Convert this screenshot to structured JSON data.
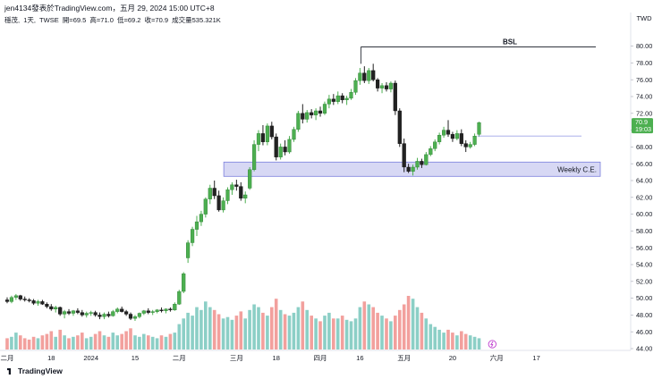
{
  "header": {
    "text": "jen4134發表於TradingView.com，五月 29, 2024 15:00 UTC+8"
  },
  "legend": {
    "symbol": "穩茂,",
    "interval": "1天,",
    "exchange": "TWSE",
    "open": "開=69.5",
    "high": "高=71.0",
    "low": "低=69.2",
    "close": "收=70.9",
    "volume": "成交量535.321K"
  },
  "currency": "TWD",
  "price_tag": {
    "price": "70.9",
    "countdown": "19:03"
  },
  "brand": {
    "label": "TradingView"
  },
  "annotations": {
    "bsl": "BSL",
    "weekly": "Weekly C.E.",
    "bsl_price": 79.9,
    "weekly_zone": [
      64.5,
      66.2
    ],
    "hline_price": 69.3
  },
  "colors": {
    "up": "#4caf50",
    "down": "#222222",
    "vol_up": "#8ccfc6",
    "vol_down": "#f2a09d",
    "zone_fill": "#c9cbf0",
    "zone_stroke": "#7b7fdc",
    "hline": "#9fa5e8"
  },
  "chart_data": {
    "type": "candlestick",
    "ylim": [
      44,
      81
    ],
    "y_ticks": [
      "44.00",
      "46.00",
      "48.00",
      "50.00",
      "52.00",
      "54.00",
      "56.00",
      "58.00",
      "60.00",
      "62.00",
      "64.00",
      "66.00",
      "68.00",
      "70.00",
      "72.00",
      "74.00",
      "76.00",
      "78.00",
      "80.00"
    ],
    "x_ticks": [
      {
        "label": "二月",
        "i": 0
      },
      {
        "label": "18",
        "i": 10
      },
      {
        "label": "2024",
        "i": 19
      },
      {
        "label": "15",
        "i": 29
      },
      {
        "label": "二月",
        "i": 39
      },
      {
        "label": "三月",
        "i": 52
      },
      {
        "label": "18",
        "i": 61
      },
      {
        "label": "四月",
        "i": 71
      },
      {
        "label": "16",
        "i": 80
      },
      {
        "label": "五月",
        "i": 90
      },
      {
        "label": "20",
        "i": 101
      },
      {
        "label": "六月",
        "i": 111
      },
      {
        "label": "17",
        "i": 120
      }
    ],
    "candles": [
      [
        49.8,
        50.1,
        49.4,
        49.6
      ],
      [
        49.6,
        50.3,
        49.4,
        50.1
      ],
      [
        50.1,
        50.5,
        49.8,
        50.3
      ],
      [
        50.3,
        50.4,
        49.7,
        49.9
      ],
      [
        49.9,
        50.2,
        49.6,
        49.8
      ],
      [
        49.8,
        50.0,
        49.5,
        49.7
      ],
      [
        49.7,
        49.9,
        49.2,
        49.4
      ],
      [
        49.4,
        49.8,
        49.1,
        49.6
      ],
      [
        49.6,
        49.8,
        49.2,
        49.3
      ],
      [
        49.3,
        49.5,
        48.8,
        49.0
      ],
      [
        49.0,
        49.3,
        48.5,
        48.7
      ],
      [
        48.7,
        49.1,
        48.3,
        48.9
      ],
      [
        48.9,
        49.0,
        47.9,
        48.1
      ],
      [
        48.1,
        48.6,
        47.6,
        48.4
      ],
      [
        48.4,
        48.7,
        48.0,
        48.2
      ],
      [
        48.2,
        48.6,
        47.9,
        48.5
      ],
      [
        48.5,
        48.8,
        48.1,
        48.3
      ],
      [
        48.3,
        48.6,
        47.8,
        48.0
      ],
      [
        48.0,
        48.4,
        47.7,
        48.2
      ],
      [
        48.2,
        48.5,
        47.9,
        48.3
      ],
      [
        48.3,
        48.5,
        47.8,
        48.0
      ],
      [
        48.0,
        48.3,
        47.5,
        47.8
      ],
      [
        47.8,
        48.3,
        47.5,
        48.1
      ],
      [
        48.1,
        48.4,
        47.7,
        47.9
      ],
      [
        47.9,
        48.6,
        47.8,
        48.4
      ],
      [
        48.4,
        48.9,
        48.2,
        48.7
      ],
      [
        48.7,
        49.0,
        48.3,
        48.4
      ],
      [
        48.4,
        48.6,
        47.9,
        48.1
      ],
      [
        48.1,
        48.3,
        47.4,
        47.6
      ],
      [
        47.6,
        48.0,
        47.3,
        47.8
      ],
      [
        47.8,
        48.3,
        47.6,
        48.2
      ],
      [
        48.2,
        48.6,
        48.0,
        48.5
      ],
      [
        48.5,
        48.8,
        48.1,
        48.3
      ],
      [
        48.3,
        48.6,
        48.0,
        48.4
      ],
      [
        48.4,
        48.7,
        48.2,
        48.6
      ],
      [
        48.6,
        48.9,
        48.3,
        48.5
      ],
      [
        48.5,
        48.8,
        48.2,
        48.7
      ],
      [
        48.7,
        48.9,
        48.4,
        48.6
      ],
      [
        48.6,
        49.5,
        48.5,
        49.3
      ],
      [
        49.3,
        51.0,
        49.2,
        50.8
      ],
      [
        50.8,
        53.1,
        50.6,
        52.9
      ],
      [
        54.8,
        56.9,
        54.2,
        56.6
      ],
      [
        56.6,
        58.5,
        56.2,
        58.2
      ],
      [
        58.2,
        59.8,
        57.4,
        59.1
      ],
      [
        59.1,
        60.4,
        58.6,
        60.0
      ],
      [
        60.0,
        62.0,
        59.6,
        61.8
      ],
      [
        61.8,
        63.5,
        61.2,
        63.1
      ],
      [
        63.1,
        64.0,
        61.8,
        62.2
      ],
      [
        62.2,
        62.8,
        60.3,
        60.5
      ],
      [
        60.5,
        62.0,
        60.2,
        61.6
      ],
      [
        61.6,
        63.2,
        61.2,
        62.9
      ],
      [
        62.9,
        63.8,
        62.3,
        63.5
      ],
      [
        63.5,
        64.1,
        62.8,
        63.3
      ],
      [
        63.3,
        63.8,
        61.6,
        61.9
      ],
      [
        61.9,
        62.7,
        61.3,
        62.3
      ],
      [
        63.1,
        65.6,
        62.9,
        65.3
      ],
      [
        65.3,
        68.8,
        65.1,
        68.3
      ],
      [
        68.3,
        70.0,
        67.5,
        69.6
      ],
      [
        69.6,
        70.6,
        68.2,
        68.6
      ],
      [
        68.6,
        70.8,
        68.2,
        70.5
      ],
      [
        70.5,
        71.0,
        68.9,
        69.2
      ],
      [
        69.2,
        69.6,
        66.4,
        66.8
      ],
      [
        66.8,
        68.4,
        66.5,
        68.0
      ],
      [
        68.0,
        68.8,
        67.0,
        67.4
      ],
      [
        67.4,
        69.3,
        67.2,
        68.9
      ],
      [
        68.9,
        70.4,
        68.6,
        70.1
      ],
      [
        70.1,
        72.3,
        69.8,
        72.0
      ],
      [
        72.0,
        73.1,
        70.8,
        71.3
      ],
      [
        71.3,
        72.4,
        70.9,
        72.1
      ],
      [
        72.1,
        72.5,
        71.4,
        71.8
      ],
      [
        71.8,
        72.6,
        71.2,
        72.3
      ],
      [
        72.3,
        72.8,
        71.6,
        72.0
      ],
      [
        72.0,
        73.4,
        71.8,
        73.1
      ],
      [
        73.1,
        74.2,
        72.6,
        73.7
      ],
      [
        73.7,
        74.3,
        73.0,
        73.4
      ],
      [
        73.4,
        74.6,
        73.1,
        74.1
      ],
      [
        74.1,
        74.4,
        73.2,
        73.6
      ],
      [
        73.6,
        74.1,
        73.0,
        73.8
      ],
      [
        73.8,
        74.9,
        73.6,
        74.5
      ],
      [
        74.5,
        76.2,
        74.2,
        75.9
      ],
      [
        75.9,
        77.4,
        75.4,
        76.8
      ],
      [
        76.8,
        77.6,
        75.6,
        75.9
      ],
      [
        75.9,
        77.4,
        75.5,
        77.1
      ],
      [
        77.1,
        77.9,
        75.8,
        76.0
      ],
      [
        76.0,
        76.2,
        74.6,
        75.0
      ],
      [
        75.0,
        75.6,
        74.4,
        75.3
      ],
      [
        75.3,
        75.7,
        74.6,
        74.9
      ],
      [
        74.9,
        75.8,
        74.5,
        75.6
      ],
      [
        75.6,
        75.9,
        71.8,
        72.3
      ],
      [
        72.3,
        72.6,
        68.0,
        68.4
      ],
      [
        68.4,
        69.0,
        65.0,
        65.6
      ],
      [
        65.6,
        66.0,
        64.9,
        65.1
      ],
      [
        65.1,
        65.9,
        64.6,
        65.6
      ],
      [
        65.6,
        66.7,
        65.3,
        66.3
      ],
      [
        66.3,
        66.6,
        65.5,
        65.9
      ],
      [
        65.9,
        67.4,
        65.8,
        67.1
      ],
      [
        67.1,
        68.1,
        66.9,
        67.8
      ],
      [
        67.8,
        68.9,
        67.5,
        68.6
      ],
      [
        68.6,
        69.7,
        68.3,
        69.4
      ],
      [
        69.4,
        70.4,
        69.1,
        70.0
      ],
      [
        70.0,
        71.2,
        69.2,
        69.5
      ],
      [
        69.5,
        69.8,
        68.6,
        69.0
      ],
      [
        69.0,
        70.0,
        68.8,
        69.6
      ],
      [
        69.6,
        70.1,
        68.1,
        68.4
      ],
      [
        68.4,
        68.8,
        67.4,
        68.0
      ],
      [
        68.0,
        68.6,
        67.8,
        68.3
      ],
      [
        68.3,
        69.6,
        68.1,
        69.3
      ],
      [
        69.5,
        71.0,
        69.2,
        70.9
      ]
    ],
    "volume": [
      8,
      9,
      12,
      10,
      8,
      7,
      9,
      8,
      10,
      11,
      13,
      9,
      14,
      10,
      8,
      9,
      10,
      12,
      8,
      9,
      11,
      13,
      10,
      9,
      12,
      10,
      11,
      13,
      15,
      10,
      9,
      11,
      10,
      9,
      8,
      10,
      9,
      11,
      12,
      18,
      22,
      26,
      24,
      30,
      28,
      34,
      30,
      28,
      25,
      22,
      23,
      21,
      24,
      27,
      22,
      28,
      32,
      30,
      26,
      24,
      30,
      36,
      28,
      25,
      24,
      26,
      30,
      34,
      28,
      24,
      22,
      20,
      24,
      26,
      22,
      22,
      24,
      21,
      20,
      22,
      30,
      34,
      32,
      30,
      26,
      24,
      22,
      20,
      24,
      28,
      32,
      38,
      36,
      30,
      26,
      22,
      18,
      16,
      14,
      12,
      14,
      12,
      10,
      13,
      11,
      10,
      9,
      8
    ]
  }
}
